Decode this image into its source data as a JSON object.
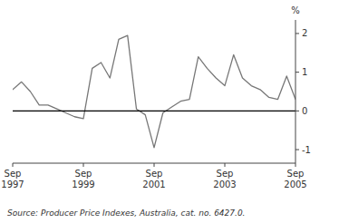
{
  "chart_data": {
    "type": "line",
    "ylabel": "%",
    "source": "Source: Producer Price Indexes, Australia, cat. no. 6427.0.",
    "categories": [
      "Sep\n1997",
      null,
      null,
      null,
      null,
      null,
      null,
      null,
      "Sep\n1999",
      null,
      null,
      null,
      null,
      null,
      null,
      null,
      "Sep\n2001",
      null,
      null,
      null,
      null,
      null,
      null,
      null,
      "Sep\n2003",
      null,
      null,
      null,
      null,
      null,
      null,
      null,
      "Sep\n2005"
    ],
    "values": [
      0.55,
      0.75,
      0.5,
      0.15,
      0.15,
      0.05,
      -0.05,
      -0.15,
      -0.2,
      1.1,
      1.25,
      0.85,
      1.85,
      1.95,
      0.05,
      -0.1,
      -0.95,
      -0.05,
      0.1,
      0.25,
      0.3,
      1.4,
      1.1,
      0.85,
      0.65,
      1.45,
      0.85,
      0.65,
      0.55,
      0.35,
      0.3,
      0.9,
      0.3
    ],
    "color": "#777777",
    "ylim": [
      -1.35,
      2.35
    ],
    "yticks": [
      -1,
      0,
      1,
      2
    ],
    "grid": false
  }
}
